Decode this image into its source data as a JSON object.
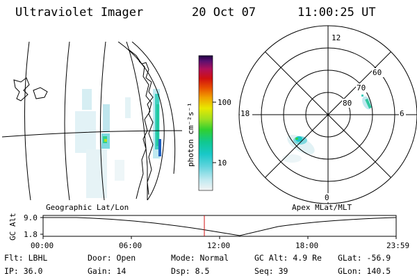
{
  "header": {
    "instrument": "Ultraviolet Imager",
    "date": "20 Oct 07",
    "time": "11:00:25 UT"
  },
  "colorbar": {
    "label": "photon cm⁻²s⁻¹",
    "ticks": [
      "100",
      "10"
    ],
    "scale": "log",
    "colors": [
      "#f4f4f4",
      "#bfe9f0",
      "#5fd3dc",
      "#18c8c8",
      "#10c890",
      "#30d030",
      "#a0e020",
      "#e8e800",
      "#f0a000",
      "#e85000",
      "#d01010",
      "#b0105a",
      "#5a1070",
      "#200040"
    ]
  },
  "geo_map": {
    "title": "Geographic Lat/Lon"
  },
  "polar_plot": {
    "title": "Apex MLat/MLT",
    "mlt_labels": [
      "12",
      "18",
      "6",
      "0"
    ],
    "lat_labels": [
      "60",
      "70",
      "80"
    ]
  },
  "altitude_plot": {
    "ylabel": "GC Alt",
    "y_ticks": [
      "9.0",
      "1.8"
    ],
    "x_ticks": [
      "00:00",
      "06:00",
      "12:00",
      "18:00",
      "23:59"
    ],
    "current_time_marker": "11:00"
  },
  "status": {
    "flt": "Flt: LBHL",
    "ip": "IP: 36.0",
    "door": "Door: Open",
    "gain": "Gain: 14",
    "mode": "Mode: Normal",
    "dsp": "Dsp:     8.5",
    "gc_alt": "GC Alt: 4.9 Re",
    "seq": "Seq: 39",
    "glat": "GLat:   -56.9",
    "glon": "GLon:  140.5"
  }
}
